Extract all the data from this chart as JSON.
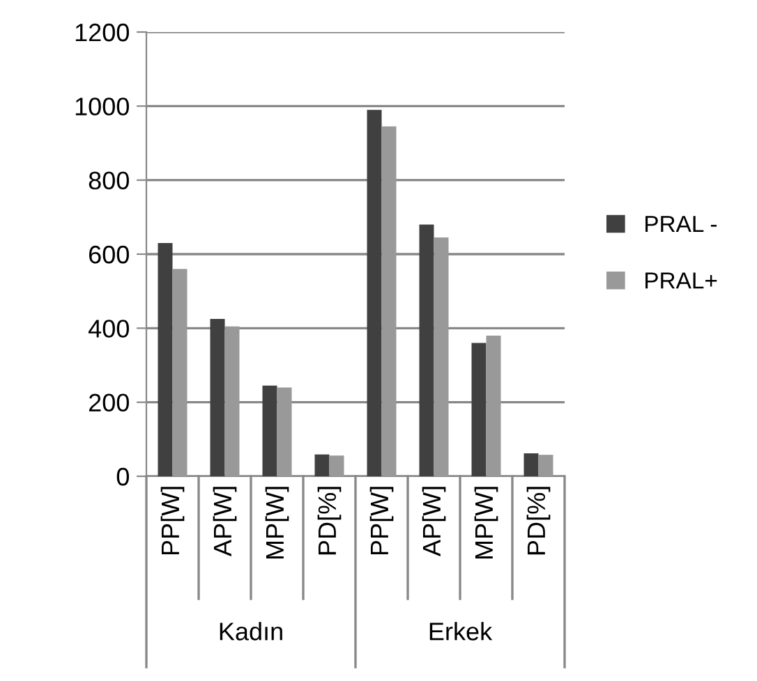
{
  "chart_data": {
    "type": "bar",
    "categories": [
      "PP[W]",
      "AP[W]",
      "MP[W]",
      "PD[%]",
      "PP[W]",
      "AP[W]",
      "MP[W]",
      "PD[%]"
    ],
    "series": [
      {
        "name": "PRAL -",
        "color": "#404040",
        "values": [
          630,
          425,
          245,
          59,
          990,
          680,
          360,
          62
        ]
      },
      {
        "name": "PRAL+",
        "color": "#999999",
        "values": [
          560,
          405,
          240,
          56,
          945,
          645,
          380,
          58
        ]
      }
    ],
    "annotations": [
      "Kadın",
      "Erkek"
    ],
    "ylim": [
      0,
      1200
    ],
    "yticks": [
      0,
      200,
      400,
      600,
      800,
      1000,
      1200
    ],
    "grid": "y",
    "legend": "right"
  }
}
